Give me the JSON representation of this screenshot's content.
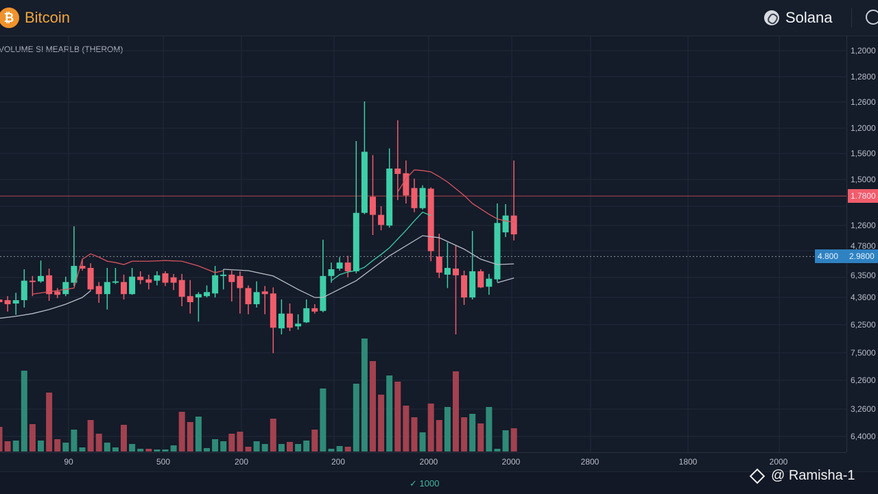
{
  "header": {
    "left_asset": {
      "name": "Bitcoin",
      "icon": "bitcoin-logo-icon",
      "symbol": "₿"
    },
    "right_asset": {
      "name": "Solana",
      "icon": "solana-logo-icon"
    },
    "search_icon": "search-icon"
  },
  "indicator_label": "VOLUME SI MEARLB (THEROM)",
  "colors": {
    "up": "#3ecfa8",
    "down": "#f05d6b",
    "vol_up": "#2f8a78",
    "vol_down": "#a3414f",
    "price_line": "#f05d6b",
    "crosshair_tag": "#2f82c2",
    "accent_orange": "#f0922b"
  },
  "chart_data": {
    "type": "candlestick",
    "title": "",
    "xlabel": "",
    "ylabel": "",
    "grid": true,
    "ylim": [
      50,
      550
    ],
    "y_tick_labels": [
      "1,2000",
      "1,2800",
      "1,2600",
      "1,2000",
      "1,5600",
      "1,5000",
      "1,2600",
      "4,7800",
      "6,3500",
      "4,3600",
      "6,2500",
      "7,5000",
      "6,2600",
      "3,2600",
      "6,4000"
    ],
    "x_tick_labels": [
      "90",
      "500",
      "200",
      "200",
      "2000",
      "2000",
      "2800",
      "1800",
      "2000"
    ],
    "candles": [
      [
        155,
        175,
        145,
        151
      ],
      [
        154,
        160,
        137,
        148
      ],
      [
        149,
        165,
        132,
        154
      ],
      [
        154,
        200,
        143,
        183
      ],
      [
        183,
        190,
        160,
        181
      ],
      [
        182,
        213,
        180,
        190
      ],
      [
        191,
        201,
        153,
        163
      ],
      [
        167,
        172,
        157,
        162
      ],
      [
        163,
        189,
        160,
        181
      ],
      [
        180,
        264,
        175,
        205
      ],
      [
        205,
        215,
        198,
        201
      ],
      [
        202,
        209,
        168,
        170
      ],
      [
        175,
        181,
        150,
        163
      ],
      [
        163,
        202,
        140,
        181
      ],
      [
        180,
        202,
        178,
        182
      ],
      [
        181,
        192,
        155,
        163
      ],
      [
        163,
        202,
        162,
        189
      ],
      [
        189,
        197,
        178,
        184
      ],
      [
        185,
        192,
        170,
        180
      ],
      [
        183,
        197,
        176,
        191
      ],
      [
        194,
        197,
        175,
        180
      ],
      [
        188,
        193,
        169,
        180
      ],
      [
        184,
        193,
        145,
        159
      ],
      [
        160,
        184,
        134,
        151
      ],
      [
        158,
        166,
        122,
        163
      ],
      [
        160,
        176,
        158,
        166
      ],
      [
        164,
        205,
        158,
        191
      ],
      [
        190,
        200,
        170,
        192
      ],
      [
        192,
        198,
        152,
        181
      ],
      [
        190,
        197,
        134,
        172
      ],
      [
        172,
        176,
        133,
        148
      ],
      [
        148,
        182,
        143,
        166
      ],
      [
        167,
        175,
        133,
        163
      ],
      [
        164,
        173,
        75,
        113
      ],
      [
        112,
        155,
        103,
        134
      ],
      [
        134,
        149,
        108,
        113
      ],
      [
        115,
        133,
        110,
        119
      ],
      [
        121,
        155,
        120,
        142
      ],
      [
        142,
        148,
        134,
        137
      ],
      [
        138,
        244,
        136,
        190
      ],
      [
        190,
        210,
        180,
        200
      ],
      [
        201,
        218,
        198,
        210
      ],
      [
        210,
        220,
        188,
        197
      ],
      [
        197,
        391,
        194,
        284
      ],
      [
        284,
        450,
        282,
        375
      ],
      [
        308,
        370,
        251,
        281
      ],
      [
        281,
        294,
        258,
        266
      ],
      [
        265,
        380,
        262,
        350
      ],
      [
        350,
        422,
        303,
        342
      ],
      [
        343,
        362,
        298,
        310
      ],
      [
        321,
        335,
        285,
        291
      ],
      [
        291,
        325,
        289,
        321
      ],
      [
        320,
        322,
        212,
        227
      ],
      [
        219,
        253,
        187,
        195
      ],
      [
        192,
        240,
        172,
        202
      ],
      [
        201,
        235,
        103,
        191
      ],
      [
        191,
        198,
        147,
        158
      ],
      [
        158,
        257,
        155,
        197
      ],
      [
        197,
        200,
        172,
        173
      ],
      [
        174,
        193,
        162,
        186
      ],
      [
        185,
        298,
        181,
        269
      ],
      [
        255,
        297,
        248,
        280
      ],
      [
        280,
        362,
        243,
        252
      ]
    ],
    "volume": [
      36,
      15,
      16,
      118,
      40,
      16,
      86,
      18,
      13,
      32,
      6,
      46,
      26,
      13,
      6,
      39,
      11,
      4,
      4,
      3,
      3,
      9,
      58,
      43,
      51,
      5,
      18,
      15,
      26,
      29,
      7,
      15,
      11,
      48,
      11,
      14,
      11,
      16,
      32,
      92,
      4,
      8,
      7,
      99,
      165,
      132,
      83,
      111,
      102,
      67,
      50,
      28,
      70,
      46,
      65,
      117,
      50,
      55,
      41,
      65,
      4,
      31,
      34
    ],
    "volume_directions": "rrggrgrrgggrrggrggrgggrrggggrrrggrgrggrgggrggrrgrrrgrrgrrgrgggr",
    "moving_averages": [
      {
        "color": "#d9555f",
        "points": [
          [
            4,
            163
          ],
          [
            8,
            170
          ],
          [
            9,
            172
          ],
          [
            10,
            215
          ],
          [
            11,
            223
          ],
          [
            12,
            218
          ],
          [
            13,
            212
          ],
          [
            14,
            210
          ],
          [
            15,
            207
          ],
          [
            16,
            212
          ],
          [
            18,
            212
          ],
          [
            20,
            213
          ],
          [
            22,
            212
          ],
          [
            24,
            205
          ],
          [
            26,
            195
          ],
          [
            27,
            198
          ]
        ]
      },
      {
        "color": "#d9555f",
        "points": [
          [
            48,
            315
          ],
          [
            49,
            335
          ],
          [
            50,
            348
          ],
          [
            51,
            347
          ],
          [
            52,
            345
          ],
          [
            53,
            338
          ],
          [
            54,
            330
          ],
          [
            55,
            320
          ],
          [
            56,
            310
          ],
          [
            57,
            298
          ],
          [
            58,
            290
          ],
          [
            59,
            282
          ],
          [
            60,
            275
          ],
          [
            61,
            272
          ],
          [
            62,
            270
          ]
        ]
      },
      {
        "color": "#3ecfa8",
        "points": [
          [
            40,
            183
          ],
          [
            41,
            192
          ],
          [
            42,
            196
          ],
          [
            43,
            198
          ],
          [
            44,
            203
          ],
          [
            45,
            213
          ],
          [
            46,
            222
          ],
          [
            47,
            232
          ],
          [
            48,
            245
          ],
          [
            49,
            258
          ],
          [
            50,
            272
          ],
          [
            51,
            285
          ],
          [
            52,
            280
          ]
        ]
      },
      {
        "color": "#b8bec8",
        "points": [
          [
            0,
            127
          ],
          [
            2,
            130
          ],
          [
            4,
            134
          ],
          [
            6,
            140
          ],
          [
            8,
            148
          ],
          [
            10,
            158
          ],
          [
            11,
            168
          ]
        ]
      },
      {
        "color": "#b8bec8",
        "points": [
          [
            27,
            200
          ],
          [
            30,
            198
          ],
          [
            33,
            190
          ],
          [
            36,
            170
          ],
          [
            38,
            158
          ],
          [
            39,
            158
          ],
          [
            43,
            183
          ],
          [
            47,
            220
          ],
          [
            51,
            250
          ],
          [
            53,
            247
          ],
          [
            56,
            230
          ],
          [
            58,
            215
          ],
          [
            60,
            207
          ],
          [
            62,
            208
          ]
        ]
      },
      {
        "color": "#b8bec8",
        "points": [
          [
            60,
            180
          ],
          [
            62,
            187
          ]
        ]
      }
    ],
    "price_line": {
      "value": 309,
      "label": "1.7800"
    },
    "crosshair": {
      "value": 219,
      "x_label": "4.800",
      "y_label": "2.9800"
    }
  },
  "footer": {
    "interval_check": "✓",
    "interval": "1000",
    "watermark": "@ Ramisha-1"
  }
}
